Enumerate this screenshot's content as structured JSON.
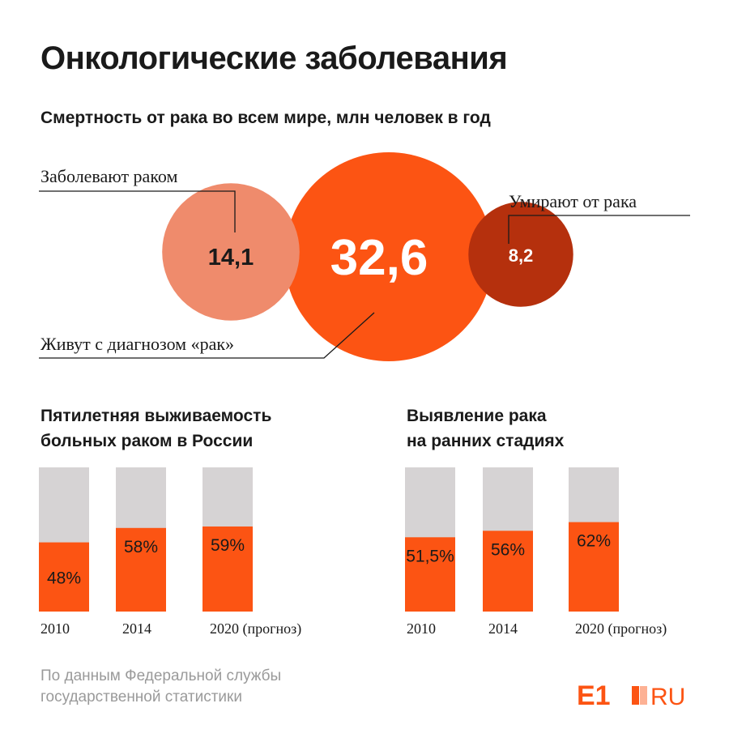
{
  "header": {
    "title": "Онкологические заболевания",
    "subtitle": "Смертность от рака во всем мире, млн человек в год"
  },
  "colors": {
    "orange": "#fc5413",
    "salmon": "#ef8b6c",
    "dark_red": "#b5300d",
    "track": "#d6d3d4"
  },
  "chart_data": [
    {
      "type": "bubble",
      "title": "Смертность от рака во всем мире, млн человек в год",
      "items": [
        {
          "label": "Заболевают раком",
          "value": 14.1,
          "display": "14,1",
          "color": "#ef8b6c"
        },
        {
          "label": "Живут с диагнозом «рак»",
          "value": 32.6,
          "display": "32,6",
          "color": "#fc5413"
        },
        {
          "label": "Умирают от рака",
          "value": 8.2,
          "display": "8,2",
          "color": "#b5300d"
        }
      ]
    },
    {
      "type": "bar",
      "title_lines": [
        "Пятилетняя выживаемость",
        "больных раком в России"
      ],
      "categories": [
        "2010",
        "2014",
        "2020 (прогноз)"
      ],
      "values": [
        48,
        58,
        59
      ],
      "labels": [
        "48%",
        "58%",
        "59%"
      ],
      "ylim": [
        0,
        100
      ]
    },
    {
      "type": "bar",
      "title_lines": [
        "Выявление рака",
        "на ранних стадиях"
      ],
      "categories": [
        "2010",
        "2014",
        "2020 (прогноз)"
      ],
      "values": [
        51.5,
        56,
        62
      ],
      "labels": [
        "51,5%",
        "56%",
        "62%"
      ],
      "ylim": [
        0,
        100
      ]
    }
  ],
  "footer": {
    "source_lines": [
      "По данным Федеральной службы",
      "государственной статистики"
    ],
    "logo_left": "E1",
    "logo_right": "RU"
  }
}
